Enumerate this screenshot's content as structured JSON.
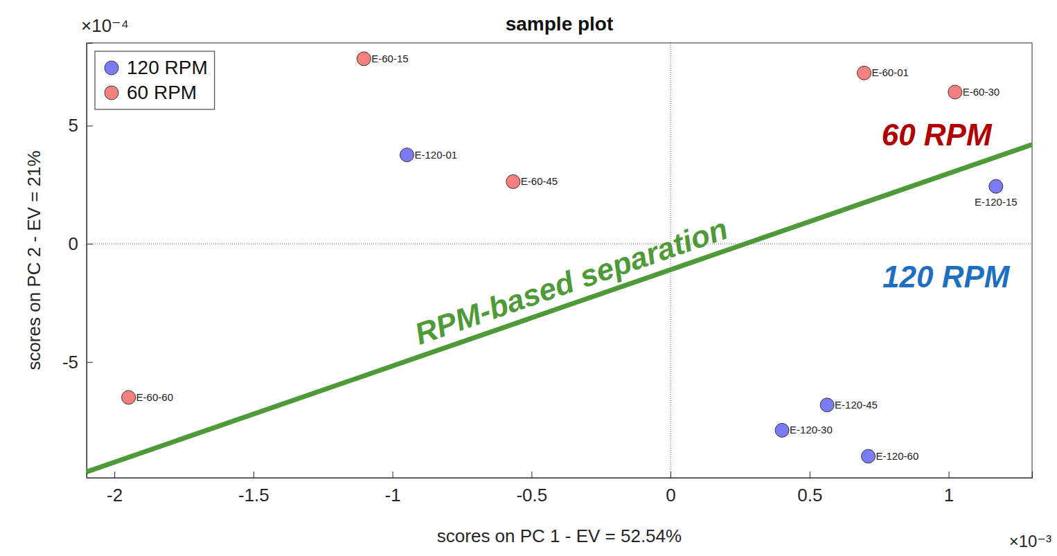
{
  "chart_data": {
    "type": "scatter",
    "title": "sample plot",
    "x_label": "scores on PC 1 - EV = 52.54%",
    "y_label": "scores on PC 2 - EV = 21%",
    "x_exponent": "×10⁻³",
    "y_exponent": "×10⁻⁴",
    "xlim": [
      -2.1,
      1.3
    ],
    "ylim": [
      -9.9,
      8.5
    ],
    "xticks": [
      -2,
      -1.5,
      -1,
      -0.5,
      0,
      0.5,
      1
    ],
    "yticks": [
      -5,
      0,
      5
    ],
    "grid": false,
    "legend": "upper left",
    "marker": "circle",
    "series": [
      {
        "name": "120 RPM",
        "color": "#7b7bf5",
        "labels": [
          "E-120-01",
          "E-120-15",
          "E-120-30",
          "E-120-45",
          "E-120-60"
        ],
        "x": [
          -0.948,
          1.17,
          0.401,
          0.563,
          0.711
        ],
        "y": [
          3.76,
          2.43,
          -7.89,
          -6.82,
          -8.99
        ]
      },
      {
        "name": "60 RPM",
        "color": "#f67f7f",
        "labels": [
          "E-60-01",
          "E-60-15",
          "E-60-30",
          "E-60-45",
          "E-60-60"
        ],
        "x": [
          0.696,
          -1.103,
          1.023,
          -0.566,
          -1.949
        ],
        "y": [
          7.23,
          7.83,
          6.42,
          2.63,
          -6.5
        ]
      }
    ],
    "separation_line": {
      "x": [
        -2.1,
        1.3
      ],
      "y": [
        -9.65,
        4.2
      ],
      "color": "#4e9a38"
    },
    "annotations": [
      {
        "text": "60 RPM",
        "color": "#b00000"
      },
      {
        "text": "120 RPM",
        "color": "#1f6fc0"
      },
      {
        "text": "RPM-based separation",
        "color": "#4e9a38"
      }
    ]
  }
}
